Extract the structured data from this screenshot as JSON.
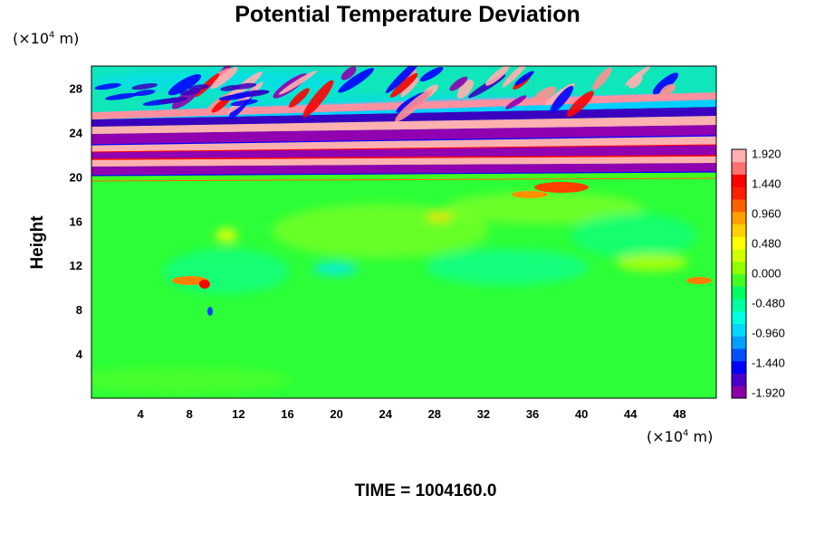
{
  "chart_data": {
    "type": "heatmap",
    "title": "Potential Temperature Deviation",
    "ylabel": "Height",
    "y_unit": {
      "prefix": "(×10",
      "exp": "4",
      "suffix": " m)"
    },
    "x_unit": {
      "prefix": "(×10",
      "exp": "4",
      "suffix": " m)"
    },
    "xlim": [
      0,
      51
    ],
    "ylim": [
      0,
      30
    ],
    "x_ticks": [
      "4",
      "8",
      "12",
      "16",
      "20",
      "24",
      "28",
      "32",
      "36",
      "40",
      "44",
      "48"
    ],
    "y_ticks": [
      "4",
      "8",
      "12",
      "16",
      "20",
      "24",
      "28"
    ],
    "colorbar": {
      "range": [
        -2.0,
        2.0
      ],
      "labels": [
        "1.920",
        "1.440",
        "0.960",
        "0.480",
        "0.000",
        "-0.480",
        "-0.960",
        "-1.440",
        "-1.920"
      ],
      "colors": [
        "#8a00a8",
        "#4a00c8",
        "#0000ff",
        "#0050ff",
        "#00a0ff",
        "#00d8ff",
        "#00ffe0",
        "#00ffa0",
        "#00ff60",
        "#40ff20",
        "#90ff00",
        "#d0ff00",
        "#ffff00",
        "#ffd000",
        "#ffa000",
        "#ff6000",
        "#ff2000",
        "#ff0000",
        "#ff7070",
        "#ffb0b0"
      ]
    },
    "footer": "TIME = 1004160.0"
  }
}
